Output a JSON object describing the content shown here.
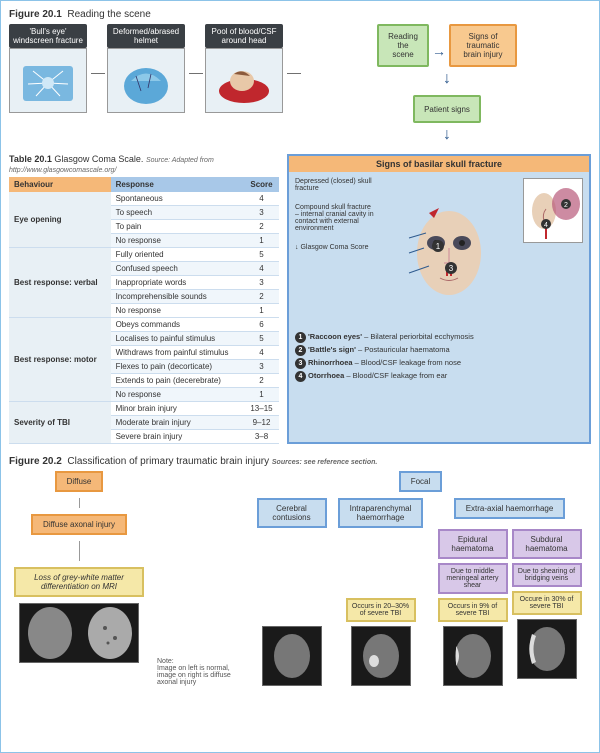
{
  "fig1": {
    "num": "Figure 20.1",
    "title": "Reading the scene"
  },
  "scenes": [
    {
      "label": "'Bull's eye' windscreen fracture",
      "icon": "🚗"
    },
    {
      "label": "Deformed/abrased helmet",
      "icon": "⛑"
    },
    {
      "label": "Pool of blood/CSF around head",
      "icon": "🩸"
    }
  ],
  "flow": {
    "reading": "Reading the scene",
    "signsTBI": "Signs of traumatic brain injury",
    "patient": "Patient signs"
  },
  "table": {
    "num": "Table 20.1",
    "title": "Glasgow Coma Scale.",
    "source": "Source: Adapted from http://www.glasgowcomascale.org/",
    "headers": [
      "Behaviour",
      "Response",
      "Score"
    ],
    "groups": [
      {
        "name": "Eye opening",
        "rows": [
          [
            "Spontaneous",
            "4"
          ],
          [
            "To speech",
            "3"
          ],
          [
            "To pain",
            "2"
          ],
          [
            "No response",
            "1"
          ]
        ]
      },
      {
        "name": "Best response: verbal",
        "rows": [
          [
            "Fully oriented",
            "5"
          ],
          [
            "Confused speech",
            "4"
          ],
          [
            "Inappropriate words",
            "3"
          ],
          [
            "Incomprehensible sounds",
            "2"
          ],
          [
            "No response",
            "1"
          ]
        ]
      },
      {
        "name": "Best response: motor",
        "rows": [
          [
            "Obeys commands",
            "6"
          ],
          [
            "Localises to painful stimulus",
            "5"
          ],
          [
            "Withdraws from painful stimulus",
            "4"
          ],
          [
            "Flexes to pain (decorticate)",
            "3"
          ],
          [
            "Extends to pain (decerebrate)",
            "2"
          ],
          [
            "No response",
            "1"
          ]
        ]
      },
      {
        "name": "Severity of TBI",
        "rows": [
          [
            "Minor brain injury",
            "13–15"
          ],
          [
            "Moderate brain injury",
            "9–12"
          ],
          [
            "Severe brain injury",
            "3–8"
          ]
        ]
      }
    ]
  },
  "basilar": {
    "title": "Signs of basilar skull fracture",
    "labels": [
      "Depressed (closed) skull fracture",
      "Compound skull fracture – internal cranial cavity in contact with external environment",
      "↓ Glasgow Coma Score"
    ],
    "signs": [
      {
        "n": "1",
        "term": "'Raccoon eyes'",
        "desc": "– Bilateral periorbital ecchymosis"
      },
      {
        "n": "2",
        "term": "'Battle's sign'",
        "desc": "– Postauricular haematoma"
      },
      {
        "n": "3",
        "term": "Rhinorrhoea",
        "desc": "– Blood/CSF leakage from nose"
      },
      {
        "n": "4",
        "term": "Otorrhoea",
        "desc": "– Blood/CSF leakage from ear"
      }
    ]
  },
  "fig2": {
    "num": "Figure 20.2",
    "title": "Classification of primary traumatic brain injury",
    "source": "Sources: see reference section.",
    "diffuse": "Diffuse",
    "focal": "Focal",
    "diffuseAxonal": "Diffuse axonal injury",
    "greyWhite": "Loss of grey-white matter differentiation on MRI",
    "note": "Note:\nImage on left is normal, image on right is diffuse axonal injury",
    "focalSubs": [
      "Cerebral contusions",
      "Intraparenchymal haemorrhage",
      "Extra-axial haemorrhage"
    ],
    "extra": [
      {
        "name": "Epidural haematoma",
        "cause": "Due to middle meningeal artery shear",
        "freq": "Occurs in 9% of severe TBI"
      },
      {
        "name": "Subdural haematoma",
        "cause": "Due to shearing of bridging veins",
        "freq": "Occure in 30% of severe TBI"
      }
    ],
    "intraFreq": "Occurs in 20–30% of severe TBI"
  },
  "colors": {
    "orange": "#f5b878",
    "blue": "#c8ddef",
    "green": "#c8e6b8",
    "purple": "#d8c8e8",
    "yellow": "#f5e8a8"
  }
}
